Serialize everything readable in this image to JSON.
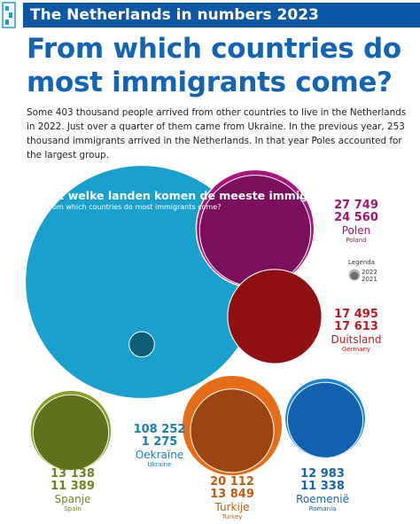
{
  "header": {
    "title": "The Netherlands in numbers 2023"
  },
  "headline": "From which countries do most immigrants come?",
  "intro": "Some 403 thousand people arrived from other countries to live in the Netherlands in 2022. Just over a quarter of them came from Ukraine. In the previous year, 253 thousand immigrants arrived in the Netherlands. In that year Poles accounted for the largest group.",
  "chart_data": {
    "type": "bubble",
    "title": "Uit welke landen komen de meeste immigranten?",
    "subtitle": "From which countries do most immigrants come?",
    "legend": {
      "label": "Legenda",
      "years": [
        "2022",
        "2021"
      ]
    },
    "series_years": [
      "2022",
      "2021"
    ],
    "countries": [
      {
        "key": "ukraine",
        "name": "Oekraïne",
        "sub": "Ukraine",
        "v2022": 108252,
        "v2021": 1275,
        "v2022_label": "108 252",
        "v2021_label": "1 275",
        "color": "#1aa0cc",
        "color2": "#0f5d76",
        "text_color": "#1a7fb0"
      },
      {
        "key": "poland",
        "name": "Polen",
        "sub": "Poland",
        "v2022": 27749,
        "v2021": 24560,
        "v2022_label": "27 749",
        "v2021_label": "24 560",
        "color": "#a5177a",
        "color2": "#7c0f5c",
        "text_color": "#a0166f"
      },
      {
        "key": "germany",
        "name": "Duitsland",
        "sub": "Germany",
        "v2022": 17495,
        "v2021": 17613,
        "v2022_label": "17 495",
        "v2021_label": "17 613",
        "color": "#c4161c",
        "color2": "#8f0f13",
        "text_color": "#c01a1f"
      },
      {
        "key": "spain",
        "name": "Spanje",
        "sub": "Spain",
        "v2022": 13138,
        "v2021": 11389,
        "v2022_label": "13 138",
        "v2021_label": "11 389",
        "color": "#8aa02a",
        "color2": "#5e721b",
        "text_color": "#6f8420"
      },
      {
        "key": "turkey",
        "name": "Turkije",
        "sub": "Turkey",
        "v2022": 20112,
        "v2021": 13849,
        "v2022_label": "20 112",
        "v2021_label": "13 849",
        "color": "#e66d17",
        "color2": "#9c4512",
        "text_color": "#c85a12"
      },
      {
        "key": "romania",
        "name": "Roemenië",
        "sub": "Romania",
        "v2022": 12983,
        "v2021": 11338,
        "v2022_label": "12 983",
        "v2021_label": "11 338",
        "color": "#1a86d4",
        "color2": "#1260b0",
        "text_color": "#1664b0"
      }
    ]
  }
}
